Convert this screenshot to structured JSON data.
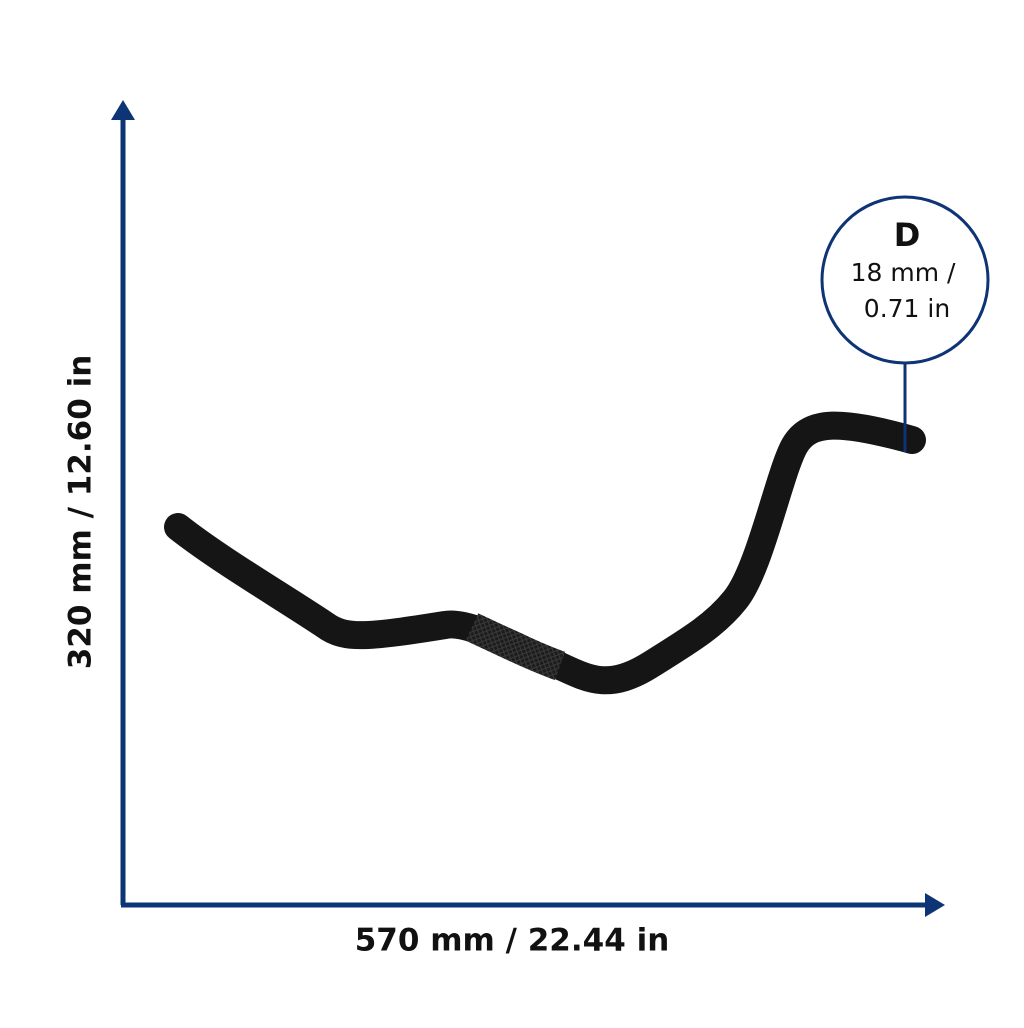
{
  "dimensions": {
    "width_label": "570 mm / 22.44 in",
    "height_label": "320 mm / 12.60 in",
    "diameter": {
      "symbol": "D",
      "metric": "18 mm /",
      "imperial": "0.71 in"
    }
  }
}
